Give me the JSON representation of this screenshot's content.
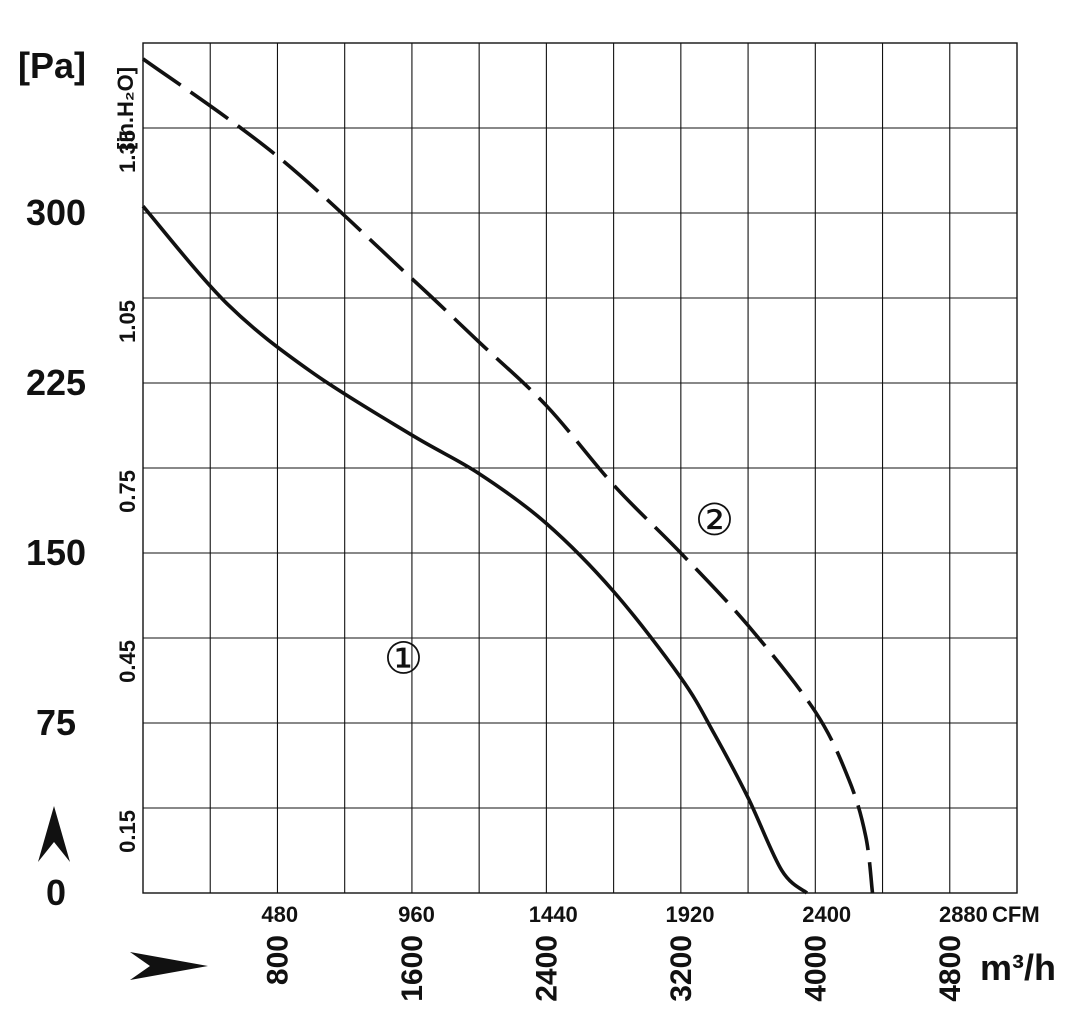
{
  "chart_data": {
    "type": "line",
    "title": "",
    "y_axis_pa": {
      "unit": "[Pa]",
      "ticks": [
        "0",
        "75",
        "150",
        "225",
        "300"
      ],
      "tick_values": [
        0,
        75,
        150,
        225,
        300
      ],
      "range": [
        0,
        375
      ]
    },
    "y_axis_inh2o": {
      "unit": "[in.H₂O]",
      "ticks": [
        "0.15",
        "0.45",
        "0.75",
        "1.05",
        "1.35"
      ],
      "tick_values": [
        0.15,
        0.45,
        0.75,
        1.05,
        1.35
      ]
    },
    "x_axis_cfm": {
      "unit": "CFM",
      "ticks": [
        "480",
        "960",
        "1440",
        "1920",
        "2400",
        "2880"
      ],
      "tick_values": [
        480,
        960,
        1440,
        1920,
        2400,
        2880
      ]
    },
    "x_axis_m3h": {
      "unit": "m³/h",
      "ticks": [
        "800",
        "1600",
        "2400",
        "3200",
        "4000",
        "4800"
      ],
      "tick_values": [
        800,
        1600,
        2400,
        3200,
        4000,
        4800
      ],
      "range": [
        0,
        5200
      ]
    },
    "grid": true,
    "series": [
      {
        "name": "①",
        "style": "solid",
        "x": [
          0,
          500,
          1000,
          1600,
          2000,
          2400,
          2800,
          3200,
          3400,
          3600,
          3800,
          3950
        ],
        "y": [
          303,
          260,
          230,
          202,
          185,
          163,
          133,
          95,
          70,
          42,
          10,
          0
        ]
      },
      {
        "name": "②",
        "style": "dashed",
        "x": [
          0,
          800,
          1600,
          2000,
          2400,
          2800,
          3200,
          3600,
          4000,
          4200,
          4300,
          4340
        ],
        "y": [
          368,
          325,
          271,
          243,
          215,
          180,
          150,
          118,
          80,
          50,
          25,
          0
        ]
      }
    ],
    "curve_label_positions": [
      {
        "name": "①",
        "x": 1550,
        "y": 104
      },
      {
        "name": "②",
        "x": 3400,
        "y": 165
      }
    ],
    "arrow_up_icon": "arrow-up",
    "arrow_right_icon": "arrow-right"
  }
}
